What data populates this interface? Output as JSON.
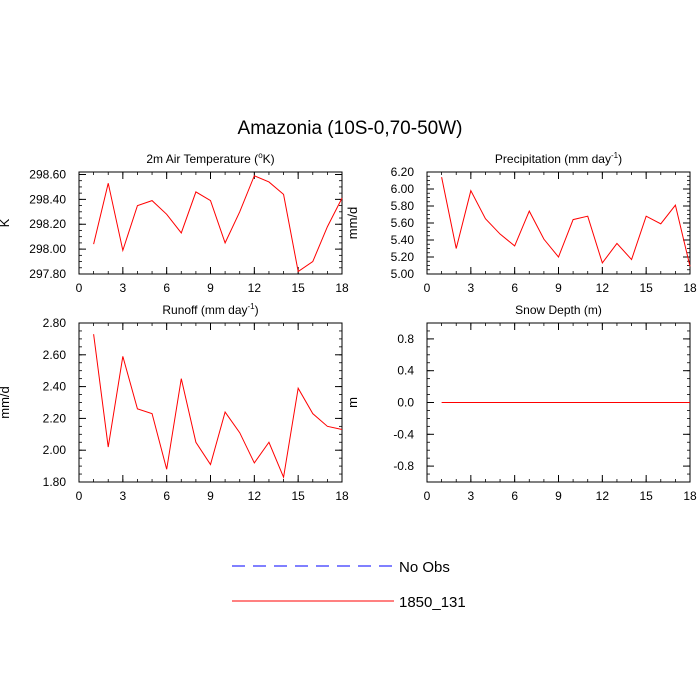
{
  "figure": {
    "title": "Amazonia (10S-0,70-50W)"
  },
  "legend": {
    "entries": [
      {
        "label": "No Obs",
        "color": "#0000ff",
        "dashed": true
      },
      {
        "label": "1850_131",
        "color": "#ff0000",
        "dashed": false
      }
    ]
  },
  "chart_data": [
    {
      "type": "line",
      "title": "2m Air Temperature (°K)",
      "title_parts": {
        "pre": "2m Air Temperature (",
        "sup": "o",
        "post": "K)"
      },
      "ylabel": "K",
      "xlim": [
        0,
        18
      ],
      "ylim": [
        297.8,
        298.62
      ],
      "xticks": [
        0,
        3,
        6,
        9,
        12,
        15,
        18
      ],
      "yticks": [
        297.8,
        298.0,
        298.2,
        298.4,
        298.6
      ],
      "ytick_labels": [
        "297.80",
        "298.00",
        "298.20",
        "298.40",
        "298.60"
      ],
      "series": [
        {
          "name": "1850_131",
          "color": "#ff0000",
          "x": [
            1,
            2,
            3,
            4,
            5,
            6,
            7,
            8,
            9,
            10,
            11,
            12,
            13,
            14,
            15,
            16,
            17,
            18
          ],
          "values": [
            298.04,
            298.53,
            297.99,
            298.35,
            298.39,
            298.28,
            298.13,
            298.46,
            298.39,
            298.05,
            298.3,
            298.59,
            298.54,
            298.44,
            297.82,
            297.9,
            298.18,
            298.41
          ]
        }
      ]
    },
    {
      "type": "line",
      "title": "Precipitation (mm day-1)",
      "title_parts": {
        "pre": "Precipitation (mm day",
        "sup": "-1",
        "post": ")"
      },
      "ylabel": "mm/d",
      "xlim": [
        0,
        18
      ],
      "ylim": [
        5.0,
        6.2
      ],
      "xticks": [
        0,
        3,
        6,
        9,
        12,
        15,
        18
      ],
      "yticks": [
        5.0,
        5.2,
        5.4,
        5.6,
        5.8,
        6.0,
        6.2
      ],
      "ytick_labels": [
        "5.00",
        "5.20",
        "5.40",
        "5.60",
        "5.80",
        "6.00",
        "6.20"
      ],
      "series": [
        {
          "name": "1850_131",
          "color": "#ff0000",
          "x": [
            1,
            2,
            3,
            4,
            5,
            6,
            7,
            8,
            9,
            10,
            11,
            12,
            13,
            14,
            15,
            16,
            17,
            18
          ],
          "values": [
            6.14,
            5.3,
            5.98,
            5.65,
            5.47,
            5.33,
            5.74,
            5.41,
            5.2,
            5.64,
            5.68,
            5.13,
            5.36,
            5.17,
            5.68,
            5.59,
            5.81,
            5.09
          ]
        }
      ]
    },
    {
      "type": "line",
      "title": "Runoff (mm day-1)",
      "title_parts": {
        "pre": "Runoff (mm day",
        "sup": "-1",
        "post": ")"
      },
      "ylabel": "mm/d",
      "xlim": [
        0,
        18
      ],
      "ylim": [
        1.8,
        2.8
      ],
      "xticks": [
        0,
        3,
        6,
        9,
        12,
        15,
        18
      ],
      "yticks": [
        1.8,
        2.0,
        2.2,
        2.4,
        2.6,
        2.8
      ],
      "ytick_labels": [
        "1.80",
        "2.00",
        "2.20",
        "2.40",
        "2.60",
        "2.80"
      ],
      "series": [
        {
          "name": "1850_131",
          "color": "#ff0000",
          "x": [
            1,
            2,
            3,
            4,
            5,
            6,
            7,
            8,
            9,
            10,
            11,
            12,
            13,
            14,
            15,
            16,
            17,
            18
          ],
          "values": [
            2.73,
            2.02,
            2.59,
            2.26,
            2.23,
            1.88,
            2.45,
            2.05,
            1.91,
            2.24,
            2.11,
            1.92,
            2.05,
            1.83,
            2.39,
            2.23,
            2.15,
            2.13
          ]
        }
      ]
    },
    {
      "type": "line",
      "title": "Snow Depth (m)",
      "title_parts": {
        "pre": "Snow Depth (m)",
        "sup": "",
        "post": ""
      },
      "ylabel": "m",
      "xlim": [
        0,
        18
      ],
      "ylim": [
        -1.0,
        1.0
      ],
      "xticks": [
        0,
        3,
        6,
        9,
        12,
        15,
        18
      ],
      "yticks": [
        -0.8,
        -0.4,
        0.0,
        0.4,
        0.8
      ],
      "ytick_labels": [
        "-0.8",
        "-0.4",
        "0.0",
        "0.4",
        "0.8"
      ],
      "series": [
        {
          "name": "1850_131",
          "color": "#ff0000",
          "x": [
            1,
            2,
            3,
            4,
            5,
            6,
            7,
            8,
            9,
            10,
            11,
            12,
            13,
            14,
            15,
            16,
            17,
            18
          ],
          "values": [
            0,
            0,
            0,
            0,
            0,
            0,
            0,
            0,
            0,
            0,
            0,
            0,
            0,
            0,
            0,
            0,
            0,
            0
          ]
        }
      ]
    }
  ]
}
